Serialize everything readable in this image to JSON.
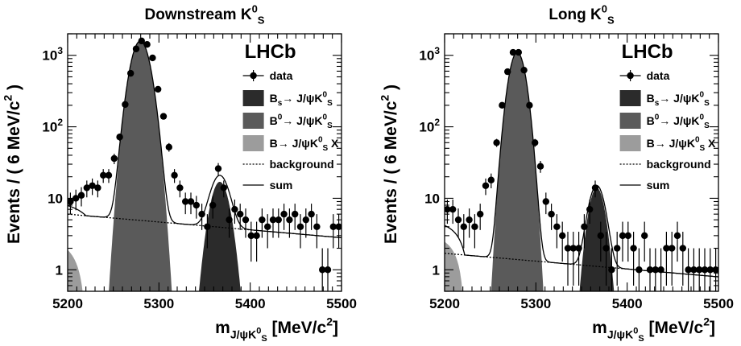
{
  "figure": {
    "legend_labels": {
      "data": "data",
      "bs": "B_s→ J/ψK^0_S",
      "b0": "B^0→ J/ψK^0_S",
      "bx": "B→ J/ψK^0_S X",
      "background": "background",
      "sum": "sum"
    },
    "colors": {
      "bs": "#2b2b2b",
      "b0": "#5a5a5a",
      "bx": "#9c9c9c",
      "data": "#000000",
      "lines": "#000000"
    }
  },
  "chart_data": [
    {
      "type": "scatter",
      "title": "Downstream K^0_S",
      "logo": "LHCb",
      "xlabel": "m_{J/ψK^0_S} [MeV/c^2]",
      "ylabel": "Events / ( 6 MeV/c^2 )",
      "xlim": [
        5200,
        5500
      ],
      "ylim": [
        0.5,
        2000
      ],
      "yscale": "log",
      "xticks": [
        5200,
        5300,
        5400,
        5500
      ],
      "yticks": [
        1,
        10,
        100,
        1000
      ],
      "yticklabels": [
        "1",
        "10",
        "10^2",
        "10^3"
      ],
      "grid": false,
      "legend_position": "top-right",
      "components": {
        "b0": {
          "mean": 5279.6,
          "peak": 1580,
          "sigma": 8.6,
          "cut": 0.5
        },
        "bs": {
          "mean": 5366.7,
          "peak": 17,
          "sigma": 8.6,
          "cut": 0.5
        },
        "bx": {
          "A": 3.0,
          "endpoint": 5220,
          "width": 20
        },
        "background": {
          "intercept": 6.0,
          "slope": -0.0011
        }
      },
      "series": [
        {
          "name": "data",
          "x": [
            5203,
            5209,
            5215,
            5221,
            5227,
            5233,
            5239,
            5245,
            5251,
            5257,
            5263,
            5269,
            5275,
            5281,
            5287,
            5293,
            5299,
            5305,
            5311,
            5317,
            5323,
            5329,
            5335,
            5341,
            5347,
            5353,
            5359,
            5365,
            5371,
            5377,
            5383,
            5389,
            5395,
            5401,
            5407,
            5413,
            5419,
            5425,
            5431,
            5437,
            5443,
            5449,
            5455,
            5461,
            5467,
            5473,
            5479,
            5485,
            5491,
            5497
          ],
          "y": [
            9,
            10,
            11,
            14,
            15,
            14,
            21,
            21,
            36,
            72,
            205,
            560,
            1230,
            1590,
            1420,
            920,
            335,
            140,
            52,
            21,
            14,
            9,
            9,
            8,
            6,
            4,
            8,
            26,
            14,
            5,
            7,
            6,
            5,
            3,
            3,
            5,
            4,
            5,
            5,
            6,
            5,
            6,
            4,
            5,
            6,
            4,
            1,
            1,
            4,
            4
          ],
          "yerr": [
            3.0,
            3.2,
            3.3,
            3.7,
            3.9,
            3.7,
            4.6,
            4.6,
            6.0,
            8.5,
            14.3,
            23.7,
            35.1,
            39.9,
            37.7,
            30.3,
            18.3,
            11.8,
            7.2,
            4.6,
            3.7,
            3.0,
            3.0,
            2.8,
            2.4,
            2.0,
            2.8,
            5.1,
            3.7,
            2.2,
            2.6,
            2.4,
            2.2,
            1.7,
            1.7,
            2.2,
            2.0,
            2.2,
            2.2,
            2.4,
            2.2,
            2.4,
            2.0,
            2.2,
            2.4,
            2.0,
            1.0,
            1.0,
            2.0,
            2.0
          ]
        }
      ]
    },
    {
      "type": "scatter",
      "title": "Long K^0_S",
      "logo": "LHCb",
      "xlabel": "m_{J/ψK^0_S} [MeV/c^2]",
      "ylabel": "Events / ( 6 MeV/c^2 )",
      "xlim": [
        5200,
        5500
      ],
      "ylim": [
        0.5,
        2000
      ],
      "yscale": "log",
      "xticks": [
        5200,
        5300,
        5400,
        5500
      ],
      "yticks": [
        1,
        10,
        100,
        1000
      ],
      "yticklabels": [
        "1",
        "10",
        "10^2",
        "10^3"
      ],
      "grid": false,
      "legend_position": "top-right",
      "components": {
        "b0": {
          "mean": 5279.6,
          "peak": 1100,
          "sigma": 7.3,
          "cut": 0.5
        },
        "bs": {
          "mean": 5366.7,
          "peak": 14,
          "sigma": 7.3,
          "cut": 0.5
        },
        "bx": {
          "A": 3.2,
          "endpoint": 5222,
          "width": 15
        },
        "background": {
          "intercept": 1.7,
          "slope": -0.0011
        }
      },
      "series": [
        {
          "name": "data",
          "x": [
            5203,
            5209,
            5215,
            5221,
            5227,
            5233,
            5239,
            5245,
            5251,
            5257,
            5263,
            5269,
            5275,
            5281,
            5287,
            5293,
            5299,
            5305,
            5311,
            5317,
            5323,
            5329,
            5335,
            5341,
            5347,
            5353,
            5359,
            5365,
            5371,
            5377,
            5383,
            5389,
            5395,
            5401,
            5407,
            5413,
            5419,
            5425,
            5431,
            5437,
            5443,
            5449,
            5455,
            5461,
            5467,
            5473,
            5479,
            5485,
            5491,
            5497
          ],
          "y": [
            7,
            7,
            5,
            4,
            5,
            4,
            6,
            15,
            18,
            60,
            200,
            590,
            1100,
            1100,
            620,
            200,
            60,
            28,
            9,
            6,
            4,
            3,
            2,
            2,
            2,
            4,
            7,
            14,
            3,
            2,
            1,
            2,
            3,
            3,
            2,
            1,
            3,
            1,
            1,
            1,
            2,
            2,
            3,
            2,
            1,
            1,
            1,
            1,
            1,
            1
          ],
          "yerr": [
            2.6,
            2.6,
            2.2,
            2.0,
            2.2,
            2.0,
            2.4,
            3.9,
            4.2,
            7.7,
            14.1,
            24.3,
            33.2,
            33.2,
            24.9,
            14.1,
            7.7,
            5.3,
            3.0,
            2.4,
            2.0,
            1.7,
            1.4,
            1.4,
            1.4,
            2.0,
            2.6,
            3.7,
            1.7,
            1.4,
            1.0,
            1.4,
            1.7,
            1.7,
            1.4,
            1.0,
            1.7,
            1.0,
            1.0,
            1.0,
            1.4,
            1.4,
            1.7,
            1.4,
            1.0,
            1.0,
            1.0,
            1.0,
            1.0,
            1.0
          ]
        }
      ]
    }
  ]
}
